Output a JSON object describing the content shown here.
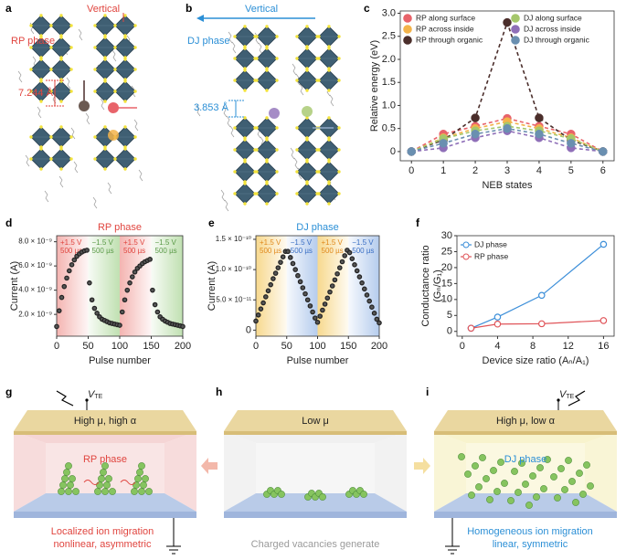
{
  "structures": [
    {
      "panel": "a",
      "direction": "Vertical",
      "phase": "RP phase",
      "distance": "7.244 Å"
    },
    {
      "panel": "b",
      "direction": "Vertical",
      "phase": "DJ phase",
      "distance": "3.853 Å"
    }
  ],
  "chart_data": [
    {
      "type": "line",
      "panel": "c",
      "dashed": true,
      "xlabel": "NEB states",
      "ylabel": "Relative energy (eV)",
      "x": [
        0,
        1,
        2,
        3,
        4,
        5,
        6
      ],
      "xlim": [
        -0.35,
        6.35
      ],
      "xticks": [
        0,
        1,
        2,
        3,
        4,
        5,
        6
      ],
      "ylim": [
        -0.2,
        3.05
      ],
      "yticks": [
        0,
        0.5,
        {
          "value": 1,
          "label": "1.0"
        },
        1.5,
        {
          "value": 2,
          "label": "2.0"
        },
        2.5,
        {
          "value": 3,
          "label": "3.0"
        }
      ],
      "legend": "top",
      "series": [
        {
          "name": "RP along surface",
          "color": "#e8636a",
          "values": [
            0,
            0.38,
            0.55,
            0.72,
            0.55,
            0.38,
            0
          ]
        },
        {
          "name": "RP across inside",
          "color": "#f3b34a",
          "values": [
            0,
            0.3,
            0.5,
            0.65,
            0.5,
            0.3,
            0
          ]
        },
        {
          "name": "RP through organic",
          "color": "#4b2e2b",
          "values": [
            0,
            0.25,
            0.73,
            2.8,
            0.73,
            0.25,
            0
          ]
        },
        {
          "name": "DJ along surface",
          "color": "#a5c76b",
          "values": [
            0,
            0.28,
            0.45,
            0.55,
            0.45,
            0.28,
            0
          ]
        },
        {
          "name": "DJ across inside",
          "color": "#8f6fb8",
          "values": [
            0,
            0.08,
            0.3,
            0.45,
            0.3,
            0.08,
            0
          ]
        },
        {
          "name": "DJ through organic",
          "color": "#6a8fb0",
          "values": [
            0,
            0.18,
            0.38,
            0.5,
            0.38,
            0.18,
            0
          ]
        }
      ]
    },
    {
      "type": "scatter",
      "panel": "d",
      "title": "RP phase",
      "title_color": "#e0453f",
      "xlabel": "Pulse number",
      "ylabel": "Current (A)",
      "color": "#222222",
      "xlim": [
        0,
        200
      ],
      "xticks": [
        0,
        50,
        100,
        150,
        200
      ],
      "ylim": [
        2e-10,
        8.5e-09
      ],
      "yticks": [
        {
          "value": 2e-09,
          "label": "2.0 × 10⁻⁹"
        },
        {
          "value": 4e-09,
          "label": "4.0 × 10⁻⁹"
        },
        {
          "value": 6e-09,
          "label": "6.0 × 10⁻⁹"
        },
        {
          "value": 8e-09,
          "label": "8.0 × 10⁻⁹"
        }
      ],
      "bands": [
        {
          "from": 0,
          "to": 50,
          "color": "#f2a7a3",
          "label": "+1.5 V",
          "duration": "500 µs",
          "label_color": "#e0453f"
        },
        {
          "from": 50,
          "to": 100,
          "color": "#b5dba4",
          "label": "−1.5 V",
          "duration": "500 µs",
          "label_color": "#5a9a47"
        },
        {
          "from": 100,
          "to": 150,
          "color": "#f2a7a3",
          "label": "+1.5 V",
          "duration": "500 µs",
          "label_color": "#e0453f"
        },
        {
          "from": 150,
          "to": 200,
          "color": "#b5dba4",
          "label": "−1.5 V",
          "duration": "500 µs",
          "label_color": "#5a9a47"
        }
      ],
      "x": [
        0,
        4,
        8,
        12,
        16,
        20,
        24,
        28,
        32,
        36,
        40,
        44,
        48,
        52,
        56,
        60,
        64,
        68,
        72,
        76,
        80,
        84,
        88,
        92,
        96,
        100,
        104,
        108,
        112,
        116,
        120,
        124,
        128,
        132,
        136,
        140,
        144,
        148,
        152,
        156,
        160,
        164,
        168,
        172,
        176,
        180,
        184,
        188,
        192,
        196,
        200
      ],
      "values": [
        1e-09,
        2.3e-09,
        3.4e-09,
        4.3e-09,
        5e-09,
        5.6e-09,
        6.1e-09,
        6.5e-09,
        6.8e-09,
        7e-09,
        7.15e-09,
        7.25e-09,
        7.3e-09,
        4.6e-09,
        3.2e-09,
        2.5e-09,
        2.1e-09,
        1.8e-09,
        1.6e-09,
        1.5e-09,
        1.4e-09,
        1.3e-09,
        1.25e-09,
        1.2e-09,
        1.15e-09,
        1.1e-09,
        2.2e-09,
        3.2e-09,
        4e-09,
        4.6e-09,
        5.1e-09,
        5.5e-09,
        5.8e-09,
        6e-09,
        6.2e-09,
        6.35e-09,
        6.45e-09,
        6.55e-09,
        4e-09,
        2.8e-09,
        2.2e-09,
        1.8e-09,
        1.6e-09,
        1.45e-09,
        1.35e-09,
        1.25e-09,
        1.2e-09,
        1.15e-09,
        1.1e-09,
        1.05e-09,
        1e-09
      ]
    },
    {
      "type": "scatter",
      "panel": "e",
      "title": "DJ phase",
      "title_color": "#2b8fd6",
      "xlabel": "Pulse number",
      "ylabel": "Current (A)",
      "color": "#222222",
      "xlim": [
        0,
        200
      ],
      "xticks": [
        0,
        50,
        100,
        150,
        200
      ],
      "ylim": [
        -1e-11,
        1.56e-10
      ],
      "yticks": [
        0,
        {
          "value": 5e-11,
          "label": "5.0 × 10⁻¹¹"
        },
        {
          "value": 1e-10,
          "label": "1.0 × 10⁻¹⁰"
        },
        {
          "value": 1.5e-10,
          "label": "1.5 × 10⁻¹⁰"
        }
      ],
      "bands": [
        {
          "from": 0,
          "to": 50,
          "color": "#f6d27a",
          "label": "+1.5 V",
          "duration": "500 µs",
          "label_color": "#e08a1e"
        },
        {
          "from": 50,
          "to": 100,
          "color": "#a8c3ea",
          "label": "−1.5 V",
          "duration": "500 µs",
          "label_color": "#3a6fc4"
        },
        {
          "from": 100,
          "to": 150,
          "color": "#f6d27a",
          "label": "+1.5 V",
          "duration": "500 µs",
          "label_color": "#e08a1e"
        },
        {
          "from": 150,
          "to": 200,
          "color": "#a8c3ea",
          "label": "−1.5 V",
          "duration": "500 µs",
          "label_color": "#3a6fc4"
        }
      ],
      "x": [
        0,
        4,
        8,
        12,
        16,
        20,
        24,
        28,
        32,
        36,
        40,
        44,
        48,
        52,
        56,
        60,
        64,
        68,
        72,
        76,
        80,
        84,
        88,
        92,
        96,
        100,
        104,
        108,
        112,
        116,
        120,
        124,
        128,
        132,
        136,
        140,
        144,
        148,
        152,
        156,
        160,
        164,
        168,
        172,
        176,
        180,
        184,
        188,
        192,
        196,
        200
      ],
      "values": [
        1.5e-11,
        2.5e-11,
        3.5e-11,
        4.5e-11,
        5.5e-11,
        6.5e-11,
        7.5e-11,
        8.5e-11,
        9.4e-11,
        1.03e-10,
        1.12e-10,
        1.21e-10,
        1.3e-10,
        1.3e-10,
        1.2e-10,
        1.1e-10,
        1e-10,
        9e-11,
        8e-11,
        7e-11,
        6e-11,
        5e-11,
        4e-11,
        3e-11,
        2e-11,
        1.3e-11,
        2.3e-11,
        3.3e-11,
        4.3e-11,
        5.3e-11,
        6.3e-11,
        7.3e-11,
        8.3e-11,
        9.3e-11,
        1.03e-10,
        1.13e-10,
        1.23e-10,
        1.32e-10,
        1.28e-10,
        1.18e-10,
        1.08e-10,
        9.8e-11,
        8.8e-11,
        7.8e-11,
        6.8e-11,
        5.8e-11,
        4.8e-11,
        3.8e-11,
        2.8e-11,
        1.8e-11,
        1.2e-11
      ]
    },
    {
      "type": "line",
      "panel": "f",
      "dashed": false,
      "xlabel": "Device size ratio (Aₙ/A₁)",
      "ylabel": [
        "Conductance ratio",
        "(Gₙ/G₁)"
      ],
      "x": [
        1,
        4,
        9,
        16
      ],
      "xlim": [
        -0.6,
        17.2
      ],
      "xticks": [
        0,
        4,
        8,
        12,
        16
      ],
      "ylim": [
        -1.5,
        30
      ],
      "yticks": [
        0,
        5,
        10,
        15,
        20,
        25,
        30
      ],
      "legend": "top-left",
      "series": [
        {
          "name": "DJ phase",
          "color": "#3d8fd9",
          "values": [
            1,
            4.5,
            11.3,
            27.3
          ]
        },
        {
          "name": "RP phase",
          "color": "#e0555a",
          "values": [
            1,
            2.3,
            2.4,
            3.4
          ]
        }
      ]
    }
  ],
  "devices": [
    {
      "panel": "g",
      "vte": {
        "symbol": "V",
        "subscript": "TE"
      },
      "top": "High μ, high α",
      "phase": "RP phase",
      "caption": [
        "Localized ion migration",
        "nonlinear, asymmetric"
      ]
    },
    {
      "panel": "h",
      "top": "Low μ",
      "caption": [
        "Charged vacancies generate"
      ]
    },
    {
      "panel": "i",
      "vte": {
        "symbol": "V",
        "subscript": "TE"
      },
      "top": "High μ, low α",
      "phase": "DJ phase",
      "caption": [
        "Homogeneous ion migration",
        "linear, symmetric"
      ]
    }
  ]
}
